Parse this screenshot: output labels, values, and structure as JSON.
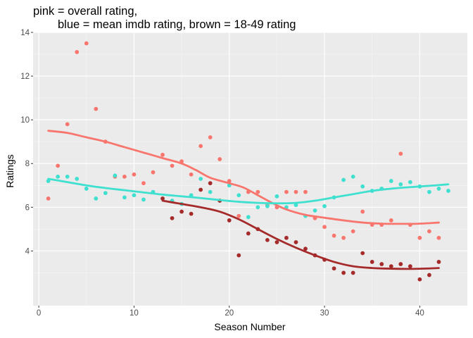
{
  "chart_data": {
    "type": "scatter",
    "title_line1": "pink = overall rating,",
    "title_line2": "blue = mean imdb rating, brown = 18-49 rating",
    "xlabel": "Season Number",
    "ylabel": "Ratings",
    "xlim": [
      -0.6,
      45.0
    ],
    "ylim": [
      1.5,
      14.0
    ],
    "x_ticks": [
      0,
      10,
      20,
      30,
      40
    ],
    "y_ticks": [
      4,
      6,
      8,
      10,
      12,
      14
    ],
    "grid": true,
    "colors": {
      "panel_bg": "#ebebeb",
      "grid_major": "#ffffff",
      "grid_minor": "#f5f5f5",
      "tick_text": "#4d4d4d"
    },
    "series": [
      {
        "key": "overall",
        "color": "#f8766d",
        "line_color": "#f8766d",
        "points": [
          [
            1,
            6.4
          ],
          [
            2,
            7.9
          ],
          [
            3,
            9.8
          ],
          [
            4,
            13.1
          ],
          [
            5,
            13.5
          ],
          [
            6,
            10.5
          ],
          [
            7,
            9.0
          ],
          [
            8,
            7.4
          ],
          [
            9,
            7.4
          ],
          [
            10,
            7.5
          ],
          [
            11,
            7.1
          ],
          [
            12,
            7.6
          ],
          [
            13,
            8.4
          ],
          [
            14,
            7.9
          ],
          [
            15,
            8.1
          ],
          [
            16,
            7.5
          ],
          [
            17,
            8.8
          ],
          [
            18,
            9.2
          ],
          [
            19,
            8.2
          ],
          [
            20,
            7.2
          ],
          [
            21,
            5.6
          ],
          [
            22,
            6.7
          ],
          [
            23,
            6.7
          ],
          [
            24,
            6.1
          ],
          [
            25,
            6.0
          ],
          [
            26,
            6.7
          ],
          [
            27,
            6.7
          ],
          [
            28,
            6.7
          ],
          [
            29,
            5.5
          ],
          [
            30,
            5.1
          ],
          [
            31,
            4.7
          ],
          [
            32,
            4.6
          ],
          [
            33,
            4.9
          ],
          [
            34,
            5.8
          ],
          [
            35,
            5.2
          ],
          [
            36,
            5.2
          ],
          [
            37,
            5.4
          ],
          [
            38,
            8.45
          ],
          [
            39,
            5.2
          ],
          [
            40,
            4.6
          ],
          [
            41,
            4.9
          ],
          [
            42,
            4.6
          ]
        ],
        "smooth": [
          [
            1,
            9.5
          ],
          [
            3,
            9.4
          ],
          [
            5,
            9.2
          ],
          [
            7,
            9.0
          ],
          [
            9,
            8.75
          ],
          [
            11,
            8.5
          ],
          [
            13,
            8.25
          ],
          [
            15,
            8.0
          ],
          [
            16.5,
            7.7
          ],
          [
            18,
            7.35
          ],
          [
            20,
            7.1
          ],
          [
            21.5,
            6.9
          ],
          [
            23,
            6.55
          ],
          [
            24.5,
            6.2
          ],
          [
            26,
            5.9
          ],
          [
            28,
            5.65
          ],
          [
            30,
            5.52
          ],
          [
            32,
            5.4
          ],
          [
            34,
            5.3
          ],
          [
            36,
            5.25
          ],
          [
            38,
            5.24
          ],
          [
            40,
            5.25
          ],
          [
            42,
            5.3
          ]
        ]
      },
      {
        "key": "imdb",
        "color": "#40e0d0",
        "line_color": "#40e0d0",
        "points": [
          [
            1,
            7.2
          ],
          [
            2,
            7.4
          ],
          [
            3,
            7.4
          ],
          [
            4,
            7.3
          ],
          [
            5,
            6.85
          ],
          [
            6,
            6.4
          ],
          [
            7,
            6.65
          ],
          [
            8,
            7.45
          ],
          [
            9,
            6.45
          ],
          [
            10,
            6.55
          ],
          [
            11,
            6.35
          ],
          [
            12,
            6.7
          ],
          [
            13,
            6.4
          ],
          [
            14,
            6.3
          ],
          [
            15,
            6.15
          ],
          [
            16,
            6.55
          ],
          [
            17,
            7.3
          ],
          [
            18,
            6.7
          ],
          [
            19,
            6.3
          ],
          [
            20,
            7.0
          ],
          [
            21,
            6.55
          ],
          [
            22,
            5.55
          ],
          [
            23,
            6.0
          ],
          [
            24,
            6.05
          ],
          [
            25,
            6.5
          ],
          [
            26,
            6.0
          ],
          [
            27,
            6.1
          ],
          [
            28,
            5.6
          ],
          [
            29,
            5.85
          ],
          [
            30,
            6.05
          ],
          [
            31,
            6.45
          ],
          [
            32,
            7.25
          ],
          [
            33,
            7.4
          ],
          [
            34,
            6.95
          ],
          [
            35,
            6.75
          ],
          [
            36,
            6.85
          ],
          [
            37,
            7.2
          ],
          [
            38,
            7.05
          ],
          [
            39,
            7.15
          ],
          [
            40,
            6.95
          ],
          [
            41,
            6.7
          ],
          [
            42,
            6.85
          ],
          [
            43,
            6.75
          ]
        ],
        "smooth": [
          [
            1,
            7.3
          ],
          [
            3,
            7.15
          ],
          [
            5,
            7.0
          ],
          [
            7,
            6.88
          ],
          [
            9,
            6.78
          ],
          [
            11,
            6.68
          ],
          [
            13,
            6.58
          ],
          [
            15,
            6.5
          ],
          [
            17,
            6.42
          ],
          [
            19,
            6.33
          ],
          [
            21,
            6.25
          ],
          [
            23,
            6.2
          ],
          [
            25,
            6.18
          ],
          [
            27,
            6.2
          ],
          [
            29,
            6.3
          ],
          [
            31,
            6.45
          ],
          [
            33,
            6.6
          ],
          [
            35,
            6.75
          ],
          [
            37,
            6.85
          ],
          [
            39,
            6.92
          ],
          [
            41,
            6.98
          ],
          [
            43,
            7.05
          ]
        ]
      },
      {
        "key": "demo",
        "color": "#a52a2a",
        "line_color": "#a52a2a",
        "points": [
          [
            13,
            6.4
          ],
          [
            14,
            5.5
          ],
          [
            15,
            5.8
          ],
          [
            16,
            5.7
          ],
          [
            17,
            6.8
          ],
          [
            18,
            7.1
          ],
          [
            19,
            6.3
          ],
          [
            20,
            5.4
          ],
          [
            21,
            3.8
          ],
          [
            22,
            4.8
          ],
          [
            23,
            5.0
          ],
          [
            24,
            4.5
          ],
          [
            25,
            4.4
          ],
          [
            26,
            4.6
          ],
          [
            27,
            4.4
          ],
          [
            28,
            4.1
          ],
          [
            29,
            3.8
          ],
          [
            30,
            3.6
          ],
          [
            31,
            3.2
          ],
          [
            32,
            3.0
          ],
          [
            33,
            3.0
          ],
          [
            34,
            3.9
          ],
          [
            35,
            3.5
          ],
          [
            36,
            3.4
          ],
          [
            37,
            3.3
          ],
          [
            38,
            3.4
          ],
          [
            39,
            3.3
          ],
          [
            40,
            2.7
          ],
          [
            41,
            2.9
          ],
          [
            42,
            3.5
          ]
        ],
        "smooth": [
          [
            13,
            6.3
          ],
          [
            15,
            6.15
          ],
          [
            17,
            6.0
          ],
          [
            19,
            5.8
          ],
          [
            21,
            5.45
          ],
          [
            23,
            5.0
          ],
          [
            25,
            4.55
          ],
          [
            27,
            4.15
          ],
          [
            29,
            3.8
          ],
          [
            31,
            3.5
          ],
          [
            33,
            3.3
          ],
          [
            35,
            3.22
          ],
          [
            37,
            3.19
          ],
          [
            39,
            3.18
          ],
          [
            41,
            3.2
          ],
          [
            42,
            3.22
          ]
        ]
      }
    ]
  }
}
